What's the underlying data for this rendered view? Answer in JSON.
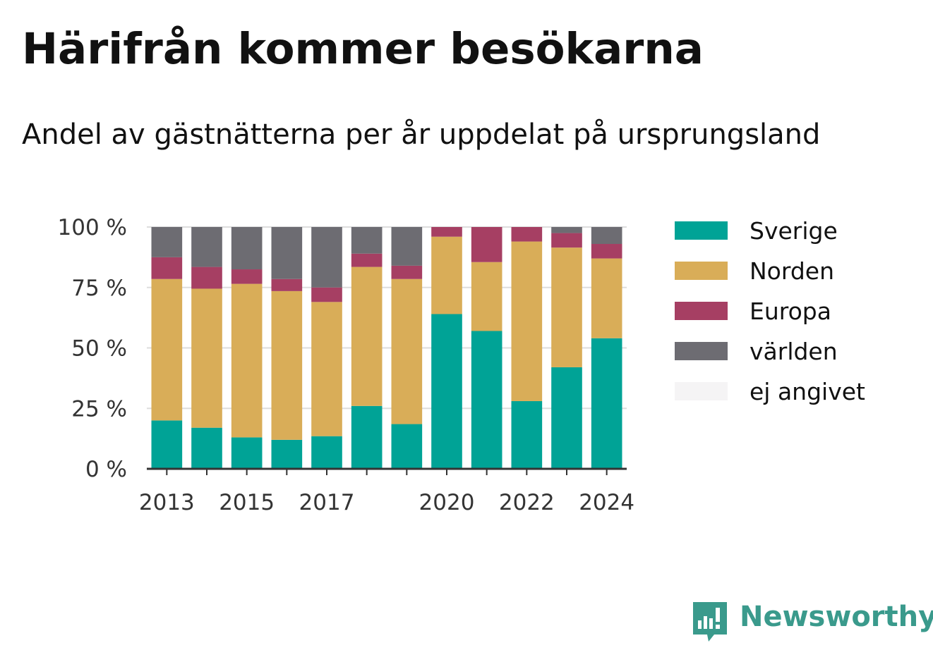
{
  "header": {
    "title": "Härifrån kommer besökarna",
    "subtitle": "Andel av gästnätterna per år uppdelat på ursprungsland"
  },
  "brand": {
    "name": "Newsworthy",
    "icon": "newsworthy-logo-icon",
    "color": "#3a9a8c"
  },
  "chart_data": {
    "type": "bar",
    "stacked": true,
    "categories": [
      "2013",
      "2014",
      "2015",
      "2016",
      "2017",
      "2018",
      "2019",
      "2020",
      "2021",
      "2022",
      "2023",
      "2024"
    ],
    "x_tick_labels": [
      "2013",
      "",
      "2015",
      "",
      "2017",
      "",
      "",
      "2020",
      "",
      "2022",
      "",
      "2024"
    ],
    "y_ticks": [
      0,
      25,
      50,
      75,
      100
    ],
    "y_tick_labels": [
      "0 %",
      "25 %",
      "50 %",
      "75 %",
      "100 %"
    ],
    "ylim": [
      0,
      100
    ],
    "grid": "horizontal",
    "legend_position": "right",
    "series": [
      {
        "name": "Sverige",
        "color": "#00a396",
        "values": [
          20,
          17,
          13,
          12,
          13.5,
          26,
          18.5,
          64,
          57,
          28,
          42,
          54
        ]
      },
      {
        "name": "Norden",
        "color": "#d9ad58",
        "values": [
          58.5,
          57.5,
          63.5,
          61.5,
          55.5,
          57.5,
          60,
          32,
          28.5,
          66,
          49.5,
          33
        ]
      },
      {
        "name": "Europa",
        "color": "#a63f63",
        "values": [
          9,
          9,
          6,
          5,
          6,
          5.5,
          5.5,
          4,
          14.5,
          6,
          6,
          6
        ]
      },
      {
        "name": "världen",
        "color": "#6d6c72",
        "values": [
          12.5,
          16.5,
          17.5,
          21.5,
          25,
          11,
          16,
          0,
          0,
          0,
          2.5,
          7
        ]
      },
      {
        "name": "ej angivet",
        "color": "#f5f4f5",
        "values": [
          0,
          0,
          0,
          0,
          0,
          0,
          0,
          0,
          0,
          0,
          0,
          0
        ]
      }
    ]
  }
}
